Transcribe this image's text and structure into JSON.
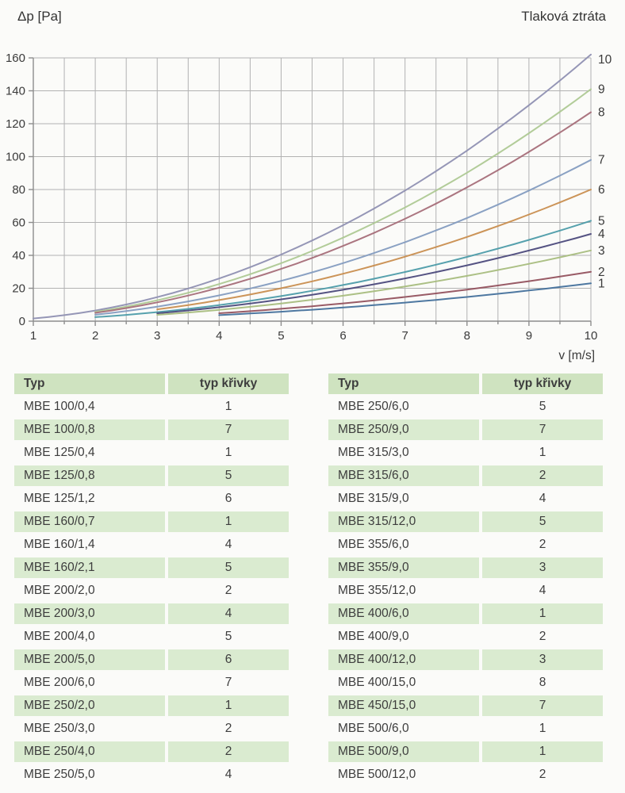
{
  "page_title": "Tlaková ztráta",
  "header": {
    "left_label": "Δp [Pa]",
    "right_title": "Tlaková ztráta"
  },
  "chart_data": {
    "type": "line",
    "title": "Tlaková ztráta",
    "xlabel": "v [m/s]",
    "ylabel": "Δp [Pa]",
    "xlim": [
      1,
      10
    ],
    "ylim": [
      0,
      160
    ],
    "x_major_ticks": [
      1,
      2,
      3,
      4,
      5,
      6,
      7,
      8,
      9,
      10
    ],
    "x_minor_step": 0.5,
    "y_ticks": [
      0,
      20,
      40,
      60,
      80,
      100,
      120,
      140,
      160
    ],
    "grid": true,
    "legend_position": "right-edge-curve-numbers",
    "model": "dp(v) = k * v^2  (Pa, v in m/s)",
    "series": [
      {
        "label": "1",
        "color": "#44719c",
        "v_start": 4,
        "k": 0.23,
        "dp_at_10": 23,
        "x": [
          4,
          5,
          6,
          7,
          8,
          9,
          10
        ],
        "values": [
          3.7,
          5.8,
          8.3,
          11.3,
          14.7,
          18.6,
          23
        ]
      },
      {
        "label": "2",
        "color": "#94525e",
        "v_start": 4,
        "k": 0.3,
        "dp_at_10": 30,
        "x": [
          4,
          5,
          6,
          7,
          8,
          9,
          10
        ],
        "values": [
          4.8,
          7.5,
          10.8,
          14.7,
          19.2,
          24.3,
          30
        ]
      },
      {
        "label": "3",
        "color": "#a8bd7e",
        "v_start": 3,
        "k": 0.43,
        "dp_at_10": 43,
        "x": [
          3,
          4,
          5,
          6,
          7,
          8,
          9,
          10
        ],
        "values": [
          3.9,
          6.9,
          10.8,
          15.5,
          21.1,
          27.5,
          34.8,
          43
        ]
      },
      {
        "label": "4",
        "color": "#4c4a7c",
        "v_start": 3,
        "k": 0.53,
        "dp_at_10": 53,
        "x": [
          3,
          4,
          5,
          6,
          7,
          8,
          9,
          10
        ],
        "values": [
          4.8,
          8.5,
          13.3,
          19.1,
          26.0,
          33.9,
          42.9,
          53
        ]
      },
      {
        "label": "5",
        "color": "#4d9ca9",
        "v_start": 2,
        "k": 0.61,
        "dp_at_10": 61,
        "x": [
          2,
          3,
          4,
          5,
          6,
          7,
          8,
          9,
          10
        ],
        "values": [
          2.4,
          5.5,
          9.8,
          15.3,
          22.0,
          29.9,
          39.0,
          49.4,
          61
        ]
      },
      {
        "label": "6",
        "color": "#c98e4f",
        "v_start": 3,
        "k": 0.8,
        "dp_at_10": 80,
        "x": [
          3,
          4,
          5,
          6,
          7,
          8,
          9,
          10
        ],
        "values": [
          7.2,
          12.8,
          20.0,
          28.8,
          39.2,
          51.2,
          64.8,
          80
        ]
      },
      {
        "label": "7",
        "color": "#849cc0",
        "v_start": 2,
        "k": 0.98,
        "dp_at_10": 98,
        "x": [
          2,
          3,
          4,
          5,
          6,
          7,
          8,
          9,
          10
        ],
        "values": [
          3.9,
          8.8,
          15.7,
          24.5,
          35.3,
          48.0,
          62.7,
          79.4,
          98
        ]
      },
      {
        "label": "8",
        "color": "#a66e79",
        "v_start": 2,
        "k": 1.27,
        "dp_at_10": 127,
        "x": [
          2,
          3,
          4,
          5,
          6,
          7,
          8,
          9,
          10
        ],
        "values": [
          5.1,
          11.4,
          20.3,
          31.8,
          45.7,
          62.2,
          81.3,
          102.9,
          127
        ]
      },
      {
        "label": "9",
        "color": "#aec993",
        "v_start": 2,
        "k": 1.41,
        "dp_at_10": 141,
        "x": [
          2,
          3,
          4,
          5,
          6,
          7,
          8,
          9,
          10
        ],
        "values": [
          5.6,
          12.7,
          22.6,
          35.3,
          50.8,
          69.1,
          90.2,
          114.2,
          141
        ]
      },
      {
        "label": "10",
        "color": "#8f90b2",
        "v_start": 1,
        "k": 1.62,
        "dp_at_10": 162,
        "x": [
          1,
          2,
          3,
          4,
          5,
          6,
          7,
          8,
          9,
          10
        ],
        "values": [
          1.6,
          6.5,
          14.6,
          25.9,
          40.5,
          58.3,
          79.4,
          103.7,
          131.2,
          162
        ]
      }
    ]
  },
  "tables": [
    {
      "headers": [
        "Typ",
        "typ křivky"
      ],
      "rows": [
        [
          "MBE 100/0,4",
          "1"
        ],
        [
          "MBE 100/0,8",
          "7"
        ],
        [
          "MBE 125/0,4",
          "1"
        ],
        [
          "MBE 125/0,8",
          "5"
        ],
        [
          "MBE 125/1,2",
          "6"
        ],
        [
          "MBE 160/0,7",
          "1"
        ],
        [
          "MBE 160/1,4",
          "4"
        ],
        [
          "MBE 160/2,1",
          "5"
        ],
        [
          "MBE 200/2,0",
          "2"
        ],
        [
          "MBE 200/3,0",
          "4"
        ],
        [
          "MBE 200/4,0",
          "5"
        ],
        [
          "MBE 200/5,0",
          "6"
        ],
        [
          "MBE 200/6,0",
          "7"
        ],
        [
          "MBE 250/2,0",
          "1"
        ],
        [
          "MBE 250/3,0",
          "2"
        ],
        [
          "MBE 250/4,0",
          "2"
        ],
        [
          "MBE 250/5,0",
          "4"
        ]
      ]
    },
    {
      "headers": [
        "Typ",
        "typ křivky"
      ],
      "rows": [
        [
          "MBE 250/6,0",
          "5"
        ],
        [
          "MBE 250/9,0",
          "7"
        ],
        [
          "MBE 315/3,0",
          "1"
        ],
        [
          "MBE 315/6,0",
          "2"
        ],
        [
          "MBE 315/9,0",
          "4"
        ],
        [
          "MBE 315/12,0",
          "5"
        ],
        [
          "MBE 355/6,0",
          "2"
        ],
        [
          "MBE 355/9,0",
          "3"
        ],
        [
          "MBE 355/12,0",
          "4"
        ],
        [
          "MBE 400/6,0",
          "1"
        ],
        [
          "MBE 400/9,0",
          "2"
        ],
        [
          "MBE 400/12,0",
          "3"
        ],
        [
          "MBE 400/15,0",
          "8"
        ],
        [
          "MBE 450/15,0",
          "7"
        ],
        [
          "MBE 500/6,0",
          "1"
        ],
        [
          "MBE 500/9,0",
          "1"
        ],
        [
          "MBE 500/12,0",
          "2"
        ]
      ]
    }
  ],
  "colors": {
    "grid": "#b2b2b2",
    "axis": "#8d8d8d",
    "text": "#3a3a3a",
    "table_header_bg": "#cfe3c0",
    "table_row_alt_bg": "#daebd0",
    "page_bg": "#fbfbf9"
  }
}
